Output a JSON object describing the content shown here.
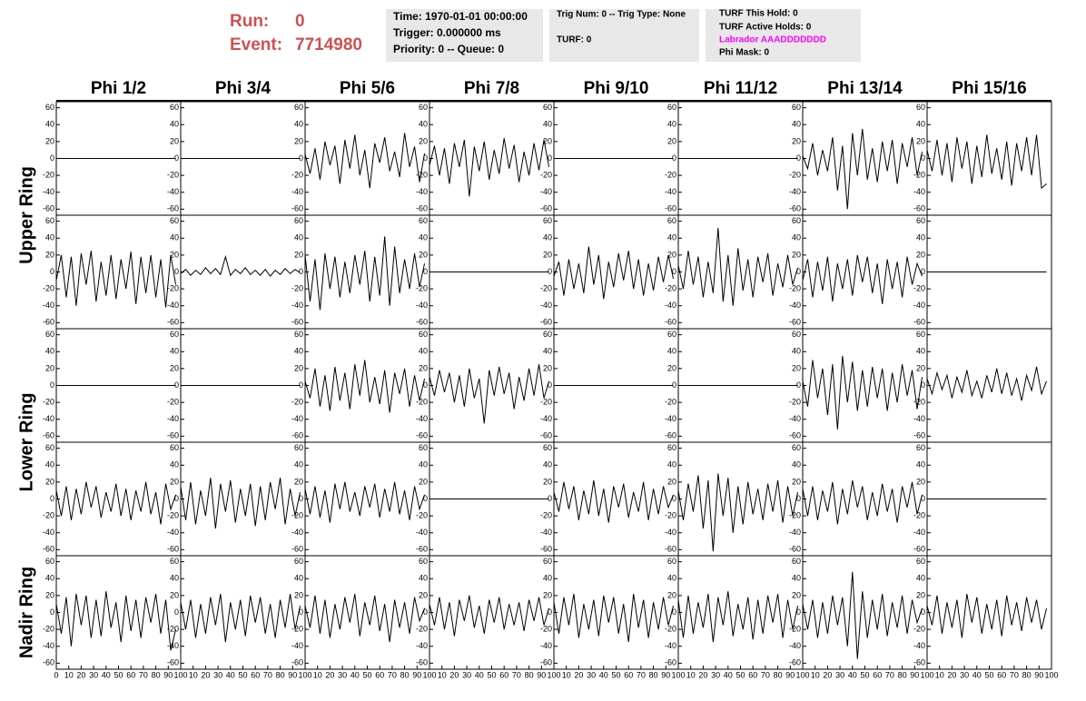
{
  "header": {
    "run_label": "Run:",
    "run": "0",
    "event_label": "Event:",
    "event": "7714980",
    "boxes": [
      {
        "lines": [
          "Time: 1970-01-01 00:00:00",
          "Trigger: 0.000000 ms",
          "Priority: 0 -- Queue: 0"
        ]
      },
      {
        "lines": [
          "Trig Num: 0 -- Trig Type: None",
          "TURF: 0"
        ]
      },
      {
        "lines": [
          "TURF This Hold: 0",
          "TURF Active Holds: 0",
          "Labrador AAADDDDDDD",
          "Phi Mask: 0"
        ]
      }
    ]
  },
  "chart_data": {
    "type": "waveform-grid",
    "columns": [
      "Phi 1/2",
      "Phi 3/4",
      "Phi 5/6",
      "Phi 7/8",
      "Phi 9/10",
      "Phi 11/12",
      "Phi 13/14",
      "Phi 15/16"
    ],
    "rings": [
      "Upper Ring",
      "Lower Ring",
      "Nadir Ring"
    ],
    "color": "#000000",
    "xlim": [
      0,
      100
    ],
    "xticks": [
      0,
      10,
      20,
      30,
      40,
      50,
      60,
      70,
      80,
      90,
      100
    ],
    "ylim": [
      -65,
      65
    ],
    "yticks": [
      60,
      40,
      20,
      0,
      -20,
      -40,
      -60
    ],
    "x": [
      0,
      4,
      8,
      12,
      16,
      20,
      24,
      28,
      32,
      36,
      40,
      44,
      48,
      52,
      56,
      60,
      64,
      68,
      72,
      76,
      80,
      84,
      88,
      92,
      96
    ],
    "panels": [
      [
        0,
        0,
        0,
        0,
        0,
        0,
        0,
        0,
        0,
        0,
        0,
        0,
        0,
        0,
        0,
        0,
        0,
        0,
        0,
        0,
        0,
        0,
        0,
        0,
        0
      ],
      [
        0,
        0,
        0,
        0,
        0,
        0,
        0,
        0,
        0,
        0,
        0,
        0,
        0,
        0,
        0,
        0,
        0,
        0,
        0,
        0,
        0,
        0,
        0,
        0,
        0
      ],
      [
        5,
        -18,
        12,
        -25,
        20,
        -8,
        15,
        -30,
        22,
        -12,
        28,
        -20,
        10,
        -35,
        18,
        -5,
        25,
        -15,
        8,
        -22,
        30,
        -10,
        14,
        -28,
        6
      ],
      [
        -8,
        15,
        -20,
        12,
        -30,
        18,
        -10,
        22,
        -45,
        14,
        -15,
        20,
        -25,
        10,
        -18,
        24,
        -12,
        16,
        -28,
        8,
        -20,
        18,
        -14,
        22,
        -10
      ],
      [
        0,
        0,
        0,
        0,
        0,
        0,
        0,
        0,
        0,
        0,
        0,
        0,
        0,
        0,
        0,
        0,
        0,
        0,
        0,
        0,
        0,
        0,
        0,
        0,
        0
      ],
      [
        0,
        0,
        0,
        0,
        0,
        0,
        0,
        0,
        0,
        0,
        0,
        0,
        0,
        0,
        0,
        0,
        0,
        0,
        0,
        0,
        0,
        0,
        0,
        0,
        0
      ],
      [
        3,
        -12,
        18,
        -20,
        10,
        -15,
        25,
        -38,
        15,
        -60,
        30,
        -20,
        35,
        -25,
        12,
        -28,
        20,
        -15,
        22,
        -30,
        18,
        -10,
        25,
        -20,
        8
      ],
      [
        10,
        -15,
        22,
        -20,
        18,
        -28,
        25,
        -12,
        20,
        -30,
        15,
        -22,
        28,
        -18,
        12,
        -25,
        20,
        -32,
        18,
        -15,
        25,
        -20,
        28,
        -35,
        -30
      ],
      [
        -10,
        20,
        -30,
        18,
        -40,
        22,
        -15,
        25,
        -35,
        12,
        -28,
        20,
        -32,
        15,
        -20,
        24,
        -38,
        18,
        -25,
        20,
        -30,
        15,
        -42,
        20,
        -15
      ],
      [
        -2,
        3,
        -4,
        2,
        -3,
        5,
        -2,
        4,
        -3,
        18,
        -4,
        3,
        -2,
        5,
        -3,
        2,
        -4,
        3,
        -5,
        2,
        -3,
        4,
        -2,
        3,
        -1
      ],
      [
        20,
        -35,
        15,
        -45,
        22,
        -20,
        18,
        -30,
        12,
        -25,
        20,
        -15,
        25,
        -35,
        18,
        -28,
        42,
        -40,
        30,
        -25,
        15,
        -20,
        22,
        -18,
        10
      ],
      [
        0,
        0,
        0,
        0,
        0,
        0,
        0,
        0,
        0,
        0,
        0,
        0,
        0,
        0,
        0,
        0,
        0,
        0,
        0,
        0,
        0,
        0,
        0,
        0,
        0
      ],
      [
        -5,
        12,
        -28,
        15,
        -20,
        10,
        -25,
        30,
        -15,
        20,
        -32,
        12,
        -18,
        22,
        -10,
        25,
        -20,
        15,
        -28,
        10,
        -22,
        18,
        -12,
        20,
        -8
      ],
      [
        8,
        -20,
        25,
        -15,
        18,
        -30,
        12,
        -25,
        52,
        -35,
        20,
        -40,
        28,
        -22,
        15,
        -30,
        18,
        -12,
        22,
        -28,
        10,
        -18,
        20,
        -15,
        5
      ],
      [
        -10,
        15,
        -30,
        12,
        -22,
        18,
        -35,
        10,
        -20,
        15,
        -28,
        20,
        -12,
        18,
        -25,
        10,
        -38,
        15,
        -20,
        12,
        -30,
        18,
        -15,
        10,
        -5
      ],
      [
        0,
        0,
        0,
        0,
        0,
        0,
        0,
        0,
        0,
        0,
        0,
        0,
        0,
        0,
        0,
        0,
        0,
        0,
        0,
        0,
        0,
        0,
        0,
        0,
        0
      ],
      [
        0,
        0,
        0,
        0,
        0,
        0,
        0,
        0,
        0,
        0,
        0,
        0,
        0,
        0,
        0,
        0,
        0,
        0,
        0,
        0,
        0,
        0,
        0,
        0,
        0
      ],
      [
        0,
        0,
        0,
        0,
        0,
        0,
        0,
        0,
        0,
        0,
        0,
        0,
        0,
        0,
        0,
        0,
        0,
        0,
        0,
        0,
        0,
        0,
        0,
        0,
        0
      ],
      [
        5,
        -15,
        20,
        -25,
        12,
        -30,
        22,
        -18,
        15,
        -28,
        25,
        -12,
        30,
        -20,
        10,
        -22,
        18,
        -32,
        15,
        -10,
        20,
        -25,
        12,
        -18,
        8
      ],
      [
        10,
        -12,
        18,
        -8,
        15,
        -20,
        12,
        -25,
        20,
        -15,
        8,
        -45,
        18,
        -12,
        22,
        -10,
        15,
        -28,
        10,
        -18,
        20,
        -12,
        25,
        -15,
        5
      ],
      [
        0,
        0,
        0,
        0,
        0,
        0,
        0,
        0,
        0,
        0,
        0,
        0,
        0,
        0,
        0,
        0,
        0,
        0,
        0,
        0,
        0,
        0,
        0,
        0,
        0
      ],
      [
        0,
        0,
        0,
        0,
        0,
        0,
        0,
        0,
        0,
        0,
        0,
        0,
        0,
        0,
        0,
        0,
        0,
        0,
        0,
        0,
        0,
        0,
        0,
        0,
        0
      ],
      [
        5,
        -25,
        30,
        -15,
        20,
        -35,
        25,
        -52,
        35,
        -20,
        28,
        -30,
        18,
        -25,
        22,
        -15,
        20,
        -30,
        15,
        -20,
        25,
        -12,
        18,
        -28,
        10
      ],
      [
        8,
        -10,
        15,
        -5,
        12,
        -15,
        10,
        -8,
        18,
        -12,
        5,
        -15,
        12,
        -8,
        20,
        -10,
        15,
        -12,
        8,
        -18,
        12,
        -6,
        22,
        -10,
        5
      ],
      [
        10,
        -20,
        15,
        -25,
        12,
        -18,
        20,
        -10,
        15,
        -22,
        8,
        -15,
        18,
        -20,
        12,
        -25,
        10,
        -15,
        20,
        -18,
        8,
        -30,
        18,
        -12,
        5
      ],
      [
        15,
        -25,
        20,
        -30,
        10,
        -20,
        25,
        -35,
        18,
        -15,
        22,
        -28,
        12,
        -20,
        18,
        -32,
        15,
        -25,
        20,
        -12,
        25,
        -30,
        12,
        -20,
        8
      ],
      [
        12,
        -18,
        15,
        -22,
        10,
        -28,
        18,
        -12,
        20,
        -15,
        8,
        -20,
        15,
        -10,
        18,
        -22,
        12,
        -15,
        20,
        -18,
        10,
        -25,
        15,
        -12,
        5
      ],
      [
        0,
        0,
        0,
        0,
        0,
        0,
        0,
        0,
        0,
        0,
        0,
        0,
        0,
        0,
        0,
        0,
        0,
        0,
        0,
        0,
        0,
        0,
        0,
        0,
        0
      ],
      [
        8,
        -15,
        20,
        -12,
        15,
        -25,
        10,
        -18,
        22,
        -20,
        12,
        -28,
        15,
        -10,
        18,
        -22,
        8,
        -15,
        20,
        -25,
        12,
        -18,
        15,
        -10,
        5
      ],
      [
        10,
        -25,
        18,
        -15,
        28,
        -35,
        22,
        -62,
        30,
        -20,
        25,
        -40,
        15,
        -30,
        20,
        -18,
        12,
        -25,
        18,
        -15,
        22,
        -28,
        15,
        -20,
        8
      ],
      [
        12,
        -20,
        15,
        -25,
        10,
        -15,
        20,
        -30,
        12,
        -18,
        22,
        -10,
        15,
        -25,
        8,
        -20,
        18,
        -15,
        12,
        -28,
        15,
        -10,
        20,
        -18,
        5
      ],
      [
        0,
        0,
        0,
        0,
        0,
        0,
        0,
        0,
        0,
        0,
        0,
        0,
        0,
        0,
        0,
        0,
        0,
        0,
        0,
        0,
        0,
        0,
        0,
        0,
        0
      ],
      [
        10,
        -25,
        18,
        -40,
        22,
        -15,
        20,
        -30,
        15,
        -28,
        25,
        -18,
        12,
        -35,
        20,
        -22,
        15,
        -30,
        18,
        -12,
        22,
        -25,
        15,
        -45,
        -20
      ],
      [
        12,
        -20,
        15,
        -30,
        10,
        -25,
        18,
        -15,
        22,
        -35,
        12,
        -20,
        15,
        -28,
        20,
        -12,
        18,
        -25,
        10,
        -30,
        15,
        -18,
        22,
        -20,
        8
      ],
      [
        8,
        -18,
        20,
        -25,
        15,
        -30,
        10,
        -20,
        18,
        -12,
        22,
        -28,
        12,
        -15,
        20,
        -22,
        10,
        -35,
        15,
        -18,
        12,
        -25,
        18,
        -10,
        5
      ],
      [
        10,
        -15,
        18,
        -20,
        12,
        -28,
        15,
        -10,
        20,
        -18,
        8,
        -25,
        15,
        -12,
        18,
        -20,
        10,
        -15,
        12,
        -22,
        15,
        -10,
        18,
        -15,
        5
      ],
      [
        12,
        -25,
        18,
        -15,
        22,
        -30,
        10,
        -20,
        15,
        -28,
        20,
        -12,
        18,
        -25,
        10,
        -35,
        22,
        -18,
        15,
        -30,
        12,
        -20,
        18,
        -15,
        8
      ],
      [
        15,
        -30,
        20,
        -25,
        12,
        -18,
        22,
        -35,
        18,
        -15,
        25,
        -28,
        10,
        -20,
        18,
        -32,
        15,
        -25,
        20,
        -12,
        22,
        -30,
        15,
        -20,
        8
      ],
      [
        10,
        -20,
        15,
        -30,
        12,
        -25,
        20,
        -15,
        18,
        -40,
        48,
        -55,
        25,
        -30,
        15,
        -20,
        22,
        -28,
        12,
        -18,
        20,
        -25,
        15,
        -12,
        5
      ],
      [
        8,
        -15,
        20,
        -25,
        12,
        -18,
        15,
        -30,
        22,
        -12,
        18,
        -25,
        10,
        -20,
        15,
        -28,
        20,
        -15,
        12,
        -22,
        18,
        -12,
        15,
        -20,
        5
      ]
    ]
  }
}
